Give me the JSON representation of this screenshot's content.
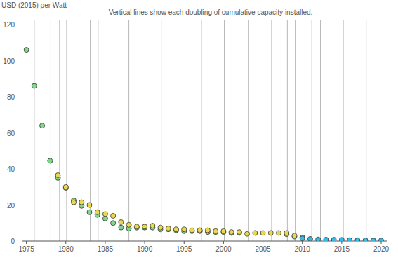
{
  "chart_data": {
    "type": "scatter",
    "ylabel": "USD (2015) per Watt",
    "annotation": "Vertical lines show each doubling of cumulative capacity installed.",
    "marker": "circle",
    "grid": false,
    "xlim": [
      1974.5,
      2020.8
    ],
    "xticks": [
      1975,
      1980,
      1985,
      1990,
      1995,
      2000,
      2005,
      2010,
      2015,
      2020
    ],
    "ylim": [
      0,
      120
    ],
    "yticks": [
      0,
      20,
      40,
      60,
      80,
      100,
      120
    ],
    "doubling_lines": [
      1976.0,
      1978.1,
      1979.2,
      1980.1,
      1983.1,
      1984.1,
      1988.0,
      1992.1,
      1997.2,
      2000.1,
      2003.2,
      2006.1,
      2008.1,
      2009.1,
      2011.2,
      2012.3,
      2015.2,
      2018.1
    ],
    "series": [
      {
        "color": "#7ed88a",
        "x": [
          1975,
          1976,
          1977,
          1978,
          1979,
          1980,
          1981,
          1982,
          1983,
          1984,
          1985,
          1986,
          1987,
          1988,
          1989,
          1990,
          1991,
          1992,
          1993,
          1994,
          1995,
          1996,
          1997,
          1998,
          1999,
          2000,
          2001,
          2002,
          2008,
          2009,
          2010
        ],
        "values": [
          106,
          86,
          64,
          44.5,
          35,
          29.5,
          22.5,
          19.5,
          16,
          14.5,
          12.5,
          10,
          7.5,
          7,
          7.5,
          7.5,
          7.5,
          6.5,
          6.5,
          6,
          5.5,
          5.5,
          5.5,
          5,
          5,
          5,
          4.5,
          4.5,
          3.8,
          2.5,
          1.8
        ]
      },
      {
        "color": "#ecd84f",
        "x": [
          1979,
          1980,
          1981,
          1982,
          1983,
          1984,
          1985,
          1986,
          1987,
          1988,
          1989,
          1990,
          1991,
          1992,
          1993,
          1994,
          1995,
          1996,
          1997,
          1998,
          1999,
          2000,
          2001,
          2002,
          2003,
          2004,
          2005,
          2006,
          2007,
          2008,
          2009,
          2010
        ],
        "values": [
          36.5,
          30,
          21.5,
          21.5,
          20,
          16,
          15,
          14,
          10.5,
          9,
          8,
          8,
          8.5,
          7.5,
          7,
          6.5,
          6.5,
          6,
          6,
          6,
          5.5,
          5.5,
          5,
          5,
          4,
          4.5,
          4.5,
          4.5,
          4.5,
          4.5,
          3,
          2
        ]
      },
      {
        "color": "#3db8e3",
        "x": [
          2010,
          2011,
          2012,
          2013,
          2014,
          2015,
          2016,
          2017,
          2018,
          2019,
          2020
        ],
        "values": [
          1.5,
          1.2,
          0.9,
          0.8,
          0.75,
          0.65,
          0.55,
          0.45,
          0.38,
          0.35,
          0.3
        ]
      }
    ]
  }
}
